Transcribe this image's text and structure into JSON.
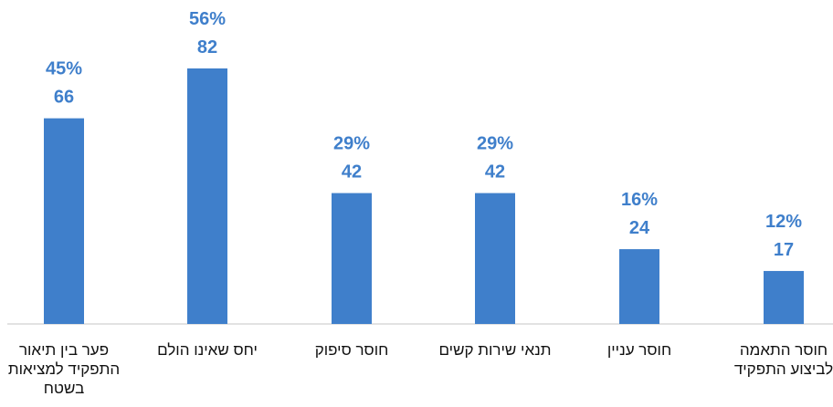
{
  "chart_data": {
    "type": "bar",
    "title": "",
    "xlabel": "",
    "ylabel": "",
    "ylim": [
      0,
      82
    ],
    "grid": false,
    "legend": "none",
    "bar_color": "#3f7fcb",
    "label_color": "#3f7fcb",
    "categories": [
      [
        "פער בין תיאור",
        "התפקיד למציאות",
        "בשטח"
      ],
      [
        "יחס שאינו הולם"
      ],
      [
        "חוסר סיפוק"
      ],
      [
        "תנאי שירות קשים"
      ],
      [
        "חוסר עניין"
      ],
      [
        "חוסר התאמה",
        "לביצוע התפקיד"
      ]
    ],
    "values": [
      66,
      82,
      42,
      42,
      24,
      17
    ],
    "percent_labels": [
      "45%",
      "56%",
      "29%",
      "29%",
      "16%",
      "12%"
    ],
    "count_labels": [
      "66",
      "82",
      "42",
      "42",
      "24",
      "17"
    ]
  }
}
